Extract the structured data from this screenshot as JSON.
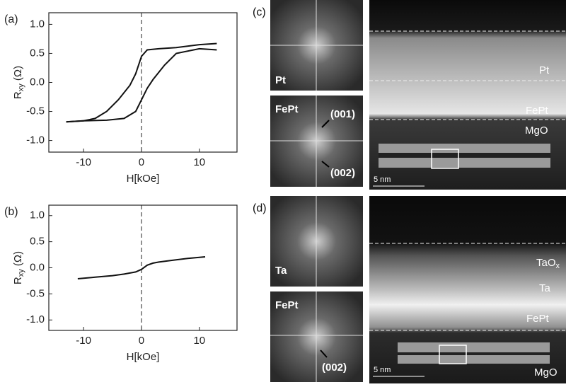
{
  "chart_data": [
    {
      "type": "line",
      "panel_label": "(a)",
      "xlabel": "H[kOe]",
      "ylabel": {
        "main": "R",
        "sub": "xy",
        "unit": " (Ω)"
      },
      "xlim": [
        -16,
        16.5
      ],
      "xticks": [
        -10,
        0,
        10
      ],
      "ylim": [
        -1.2,
        1.2
      ],
      "yticks": [
        {
          "value": -1.0,
          "label": "-1.0"
        },
        {
          "value": -0.5,
          "label": "-0.5"
        },
        {
          "value": 0.0,
          "label": "0.0"
        },
        {
          "value": 0.5,
          "label": "0.5"
        },
        {
          "value": 1.0,
          "label": "1.0"
        }
      ],
      "vline": 0,
      "series": [
        {
          "color": "#111111",
          "x": [
            13,
            10,
            6,
            3,
            1,
            0,
            -1,
            -2,
            -4,
            -6,
            -8,
            -10,
            -13
          ],
          "values": [
            0.67,
            0.65,
            0.6,
            0.58,
            0.56,
            0.45,
            0.15,
            -0.05,
            -0.3,
            -0.5,
            -0.62,
            -0.66,
            -0.68
          ]
        },
        {
          "color": "#111111",
          "x": [
            -13,
            -10,
            -6,
            -3,
            -1,
            0,
            1,
            2,
            4,
            6,
            10,
            13
          ],
          "values": [
            -0.68,
            -0.66,
            -0.65,
            -0.62,
            -0.5,
            -0.3,
            -0.1,
            0.05,
            0.3,
            0.5,
            0.58,
            0.56
          ]
        }
      ]
    },
    {
      "type": "line",
      "panel_label": "(b)",
      "xlabel": "H[kOe]",
      "ylabel": {
        "main": "R",
        "sub": "xy",
        "unit": " (Ω)"
      },
      "xlim": [
        -16,
        16.5
      ],
      "xticks": [
        -10,
        0,
        10
      ],
      "ylim": [
        -1.2,
        1.2
      ],
      "yticks": [
        {
          "value": -1.0,
          "label": "-1.0"
        },
        {
          "value": -0.5,
          "label": "-0.5"
        },
        {
          "value": 0.0,
          "label": "0.0"
        },
        {
          "value": 0.5,
          "label": "0.5"
        },
        {
          "value": 1.0,
          "label": "1.0"
        }
      ],
      "vline": 0,
      "series": [
        {
          "color": "#111111",
          "x": [
            -11,
            -8,
            -5,
            -3,
            -2,
            -1,
            0,
            1,
            2,
            3,
            5,
            8,
            11
          ],
          "values": [
            -0.21,
            -0.18,
            -0.15,
            -0.12,
            -0.1,
            -0.08,
            -0.03,
            0.05,
            0.09,
            0.11,
            0.14,
            0.18,
            0.21
          ]
        }
      ]
    }
  ],
  "images": {
    "c": {
      "label": "(c)",
      "fft_top": "Pt",
      "fft_bottom": "FePt",
      "annotations": [
        "(001)",
        "(002)"
      ],
      "layers": [
        "Pt",
        "FePt",
        "MgO"
      ],
      "scale": "5 nm"
    },
    "d": {
      "label": "(d)",
      "fft_top": "Ta",
      "fft_bottom": "FePt",
      "annotations": [
        "(002)"
      ],
      "layer_oxide": {
        "main": "TaO",
        "sub": "x"
      },
      "layers": [
        "Ta",
        "FePt",
        "MgO"
      ],
      "scale": "5 nm"
    }
  }
}
